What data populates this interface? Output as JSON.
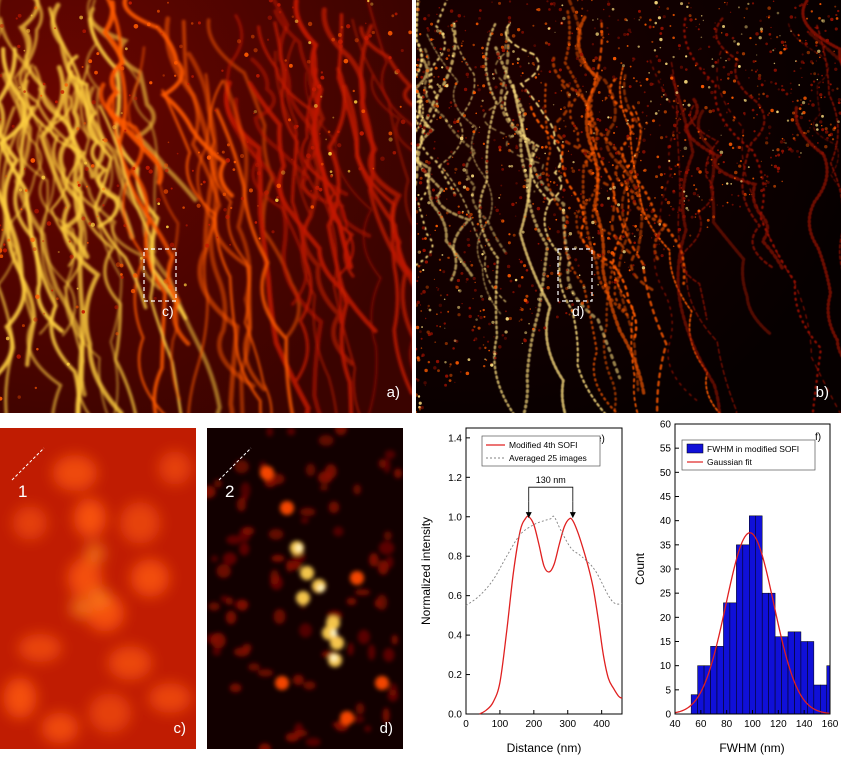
{
  "panels": {
    "a": {
      "label": "a)",
      "roi_label": "c)"
    },
    "b": {
      "label": "b)",
      "roi_label": "d)"
    },
    "c": {
      "label": "c)",
      "line_label": "1"
    },
    "d": {
      "label": "d)",
      "line_label": "2"
    }
  },
  "colors": {
    "hot_dark": "#1a0000",
    "hot_red": "#b81400",
    "hot_orange": "#ff6a00",
    "hot_yellow": "#ffe050",
    "line_red": "#e02020",
    "line_gray": "#808080",
    "bar_blue": "#1010d8"
  },
  "chart_data": [
    {
      "type": "line",
      "panel_label": "e)",
      "xlabel": "Distance (nm)",
      "ylabel": "Normalized intensity",
      "xlim": [
        0,
        460
      ],
      "ylim": [
        0,
        1.45
      ],
      "xticks": [
        0,
        100,
        200,
        300,
        400
      ],
      "yticks": [
        0.0,
        0.2,
        0.4,
        0.6,
        0.8,
        1.0,
        1.2,
        1.4
      ],
      "legend_position": "top-right",
      "annotation": {
        "text": "130 nm",
        "x1": 185,
        "x2": 315,
        "y": 1.15
      },
      "series": [
        {
          "name": "Modified 4th SOFI",
          "style": "solid",
          "color": "#e02020",
          "x": [
            40,
            60,
            80,
            100,
            120,
            140,
            160,
            175,
            185,
            200,
            215,
            230,
            245,
            260,
            275,
            290,
            305,
            315,
            330,
            345,
            360,
            375,
            390,
            405,
            420,
            435,
            450,
            460
          ],
          "y": [
            0.0,
            0.02,
            0.06,
            0.16,
            0.42,
            0.72,
            0.93,
            0.99,
            1.0,
            0.96,
            0.86,
            0.75,
            0.72,
            0.76,
            0.86,
            0.95,
            0.99,
            0.98,
            0.92,
            0.84,
            0.75,
            0.64,
            0.48,
            0.3,
            0.18,
            0.13,
            0.09,
            0.08
          ]
        },
        {
          "name": "Averaged 25 images",
          "style": "dashed",
          "color": "#808080",
          "x": [
            0,
            40,
            80,
            120,
            160,
            200,
            230,
            250,
            260,
            280,
            310,
            340,
            380,
            420,
            440,
            460
          ],
          "y": [
            0.55,
            0.6,
            0.68,
            0.8,
            0.91,
            0.96,
            0.98,
            0.99,
            1.0,
            0.93,
            0.84,
            0.8,
            0.73,
            0.6,
            0.56,
            0.56
          ]
        }
      ]
    },
    {
      "type": "bar",
      "panel_label": "f)",
      "xlabel": "FWHM (nm)",
      "ylabel": "Count",
      "xlim": [
        40,
        160
      ],
      "ylim": [
        0,
        60
      ],
      "xticks": [
        40,
        60,
        80,
        100,
        120,
        140,
        160
      ],
      "yticks": [
        0,
        5,
        10,
        15,
        20,
        25,
        30,
        35,
        40,
        45,
        50,
        55,
        60
      ],
      "legend_position": "top-left",
      "bin_width": 5,
      "series": [
        {
          "name": "FWHM in modified SOFI",
          "kind": "histogram",
          "color": "#1010d8",
          "x": [
            55,
            60,
            65,
            70,
            75,
            80,
            85,
            90,
            95,
            100,
            105,
            110,
            115,
            120,
            125,
            130,
            135,
            140,
            145,
            150,
            155,
            160
          ],
          "values": [
            4,
            10,
            10,
            14,
            14,
            23,
            23,
            35,
            35,
            41,
            41,
            25,
            25,
            16,
            16,
            17,
            17,
            15,
            15,
            6,
            6,
            10
          ]
        },
        {
          "name": "Gaussian fit",
          "kind": "line",
          "color": "#e02020",
          "mean": 98,
          "sigma": 18.5,
          "amplitude": 37.5,
          "baseline": 0
        }
      ]
    }
  ]
}
